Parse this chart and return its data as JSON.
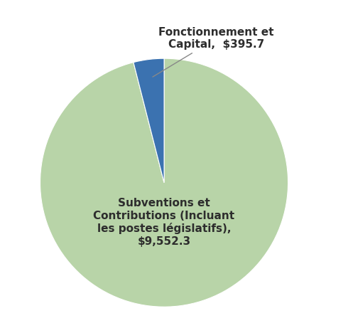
{
  "values": [
    9552.3,
    395.7
  ],
  "colors": [
    "#b8d4a8",
    "#3b72b0"
  ],
  "label_green": "Subventions et\nContributions (Incluant\nles postes législatifs),\n$9,552.3",
  "label_blue": "Fonctionnement et\nCapital,  $395.7",
  "startangle": 90,
  "background_color": "#ffffff",
  "label_fontsize": 11,
  "label_color": "#2d2d2d",
  "figsize": [
    4.97,
    4.68
  ],
  "dpi": 100
}
